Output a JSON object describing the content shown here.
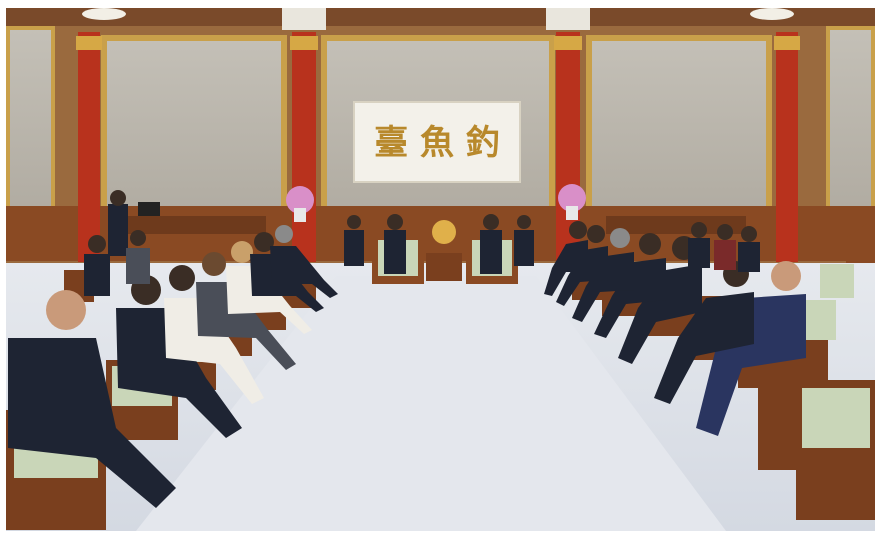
{
  "photo": {
    "plaque_inscription": "臺 魚 釣",
    "colors": {
      "wall": "#b8b3a8",
      "pillar": "#b8321d",
      "gold_trim": "#c9a04a",
      "wood": "#8a4a23",
      "carpet": "#dfe3ea",
      "chair_cushion": "#c9d6b8",
      "suit": "#1e2433"
    }
  }
}
